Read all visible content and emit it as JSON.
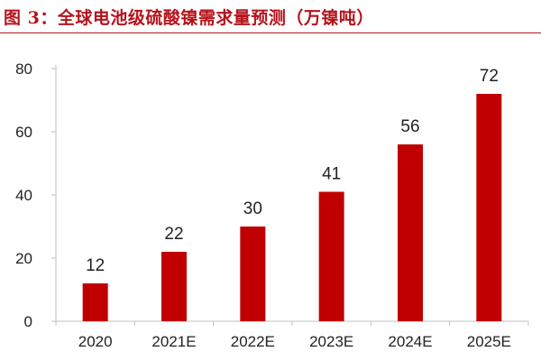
{
  "title": "图 3：全球电池级硫酸镍需求量预测（万镍吨）",
  "chart_data": {
    "type": "bar",
    "title": "全球电池级硫酸镍需求量预测（万镍吨）",
    "categories": [
      "2020",
      "2021E",
      "2022E",
      "2023E",
      "2024E",
      "2025E"
    ],
    "values": [
      12,
      22,
      30,
      41,
      56,
      72
    ],
    "ylim": [
      0,
      80
    ],
    "yticks": [
      0,
      20,
      40,
      60,
      80
    ],
    "xlabel": "",
    "ylabel": "",
    "grid": false,
    "legend": "none",
    "bar_color": "#c00000"
  }
}
